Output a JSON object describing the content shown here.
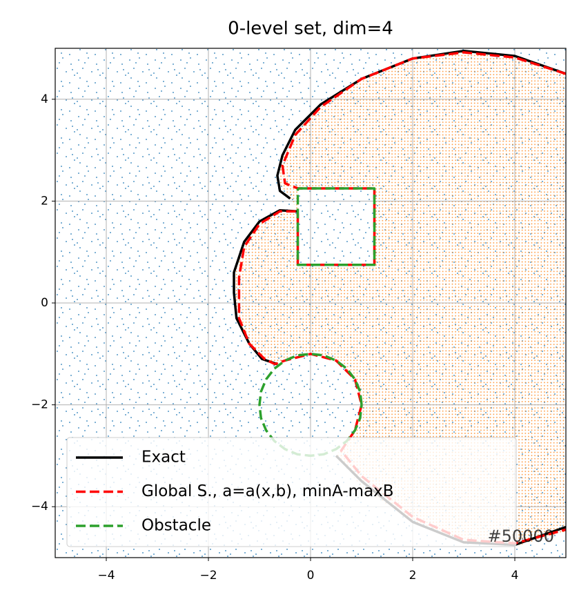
{
  "chart_data": {
    "type": "line",
    "title": "0-level set, dim=4",
    "annotation": "#50000",
    "xlim": [
      -5,
      5
    ],
    "ylim": [
      -5,
      5
    ],
    "xticks": [
      {
        "value": -4,
        "label": "−4"
      },
      {
        "value": -2,
        "label": "−2"
      },
      0,
      2,
      4
    ],
    "yticks": [
      {
        "value": -4,
        "label": "−4"
      },
      {
        "value": -2,
        "label": "−2"
      },
      0,
      2,
      4
    ],
    "grid": true,
    "legend": "lower left",
    "series": [
      {
        "name": "Exact",
        "color": "#000000",
        "dash": "solid",
        "x": [
          -0.4,
          -0.6,
          -0.65,
          -0.55,
          -0.3,
          0.2,
          1,
          2,
          3,
          4,
          5,
          null,
          -0.25,
          -0.6,
          -1,
          -1.3,
          -1.5,
          -1.5,
          -1.45,
          -1.2,
          -0.95,
          -0.65,
          null,
          0.5,
          1,
          2,
          3,
          4,
          5
        ],
        "y": [
          2.05,
          2.2,
          2.5,
          2.9,
          3.4,
          3.9,
          4.4,
          4.8,
          4.95,
          4.85,
          4.5,
          null,
          1.8,
          1.82,
          1.6,
          1.2,
          0.6,
          0.2,
          -0.3,
          -0.8,
          -1.1,
          -1.2,
          null,
          -3.0,
          -3.5,
          -4.3,
          -4.7,
          -4.75,
          -4.4
        ]
      },
      {
        "name": "Global S., a=a(x,b), minA-maxB",
        "color": "#ff0000",
        "dash": "dashed",
        "x": [
          5,
          4,
          3,
          2,
          1,
          0.2,
          -0.3,
          -0.55,
          -0.5,
          -0.25,
          1.25,
          1.25,
          -0.25,
          -0.25,
          -0.3,
          -0.6,
          -1,
          -1.3,
          -1.4,
          -1.4,
          -1.2,
          -0.9,
          -0.7,
          -0.5,
          0,
          0.5,
          0.87,
          1,
          0.87,
          0.6,
          1,
          2,
          3,
          4,
          5
        ],
        "y": [
          4.5,
          4.82,
          4.92,
          4.8,
          4.4,
          3.85,
          3.3,
          2.7,
          2.35,
          2.25,
          2.25,
          0.75,
          0.75,
          1.8,
          1.8,
          1.8,
          1.55,
          1.1,
          0.5,
          -0.3,
          -0.8,
          -1.1,
          -1.2,
          -1.13,
          -1,
          -1.13,
          -1.5,
          -2,
          -2.5,
          -2.9,
          -3.4,
          -4.2,
          -4.65,
          -4.72,
          -4.45
        ]
      },
      {
        "name": "Obstacle",
        "color": "#2ca02c",
        "dash": "dashed",
        "x": [
          -0.25,
          1.25,
          1.25,
          -0.25,
          -0.25,
          null,
          1,
          0.97,
          0.87,
          0.71,
          0.5,
          0.26,
          0,
          -0.26,
          -0.5,
          -0.71,
          -0.87,
          -0.97,
          -1,
          -0.97,
          -0.87,
          -0.71,
          -0.5,
          -0.26,
          0,
          0.26,
          0.5,
          0.71,
          0.87,
          0.97,
          1
        ],
        "y": [
          2.25,
          2.25,
          0.75,
          0.75,
          2.25,
          null,
          -2,
          -1.74,
          -1.5,
          -1.29,
          -1.13,
          -1.03,
          -1,
          -1.03,
          -1.13,
          -1.29,
          -1.5,
          -1.74,
          -2,
          -2.26,
          -2.5,
          -2.71,
          -2.87,
          -2.97,
          -3,
          -2.97,
          -2.87,
          -2.71,
          -2.5,
          -2.26,
          -2
        ]
      }
    ]
  }
}
